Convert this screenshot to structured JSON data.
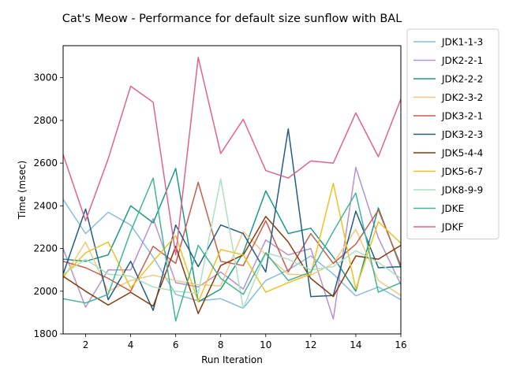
{
  "chart_data": {
    "type": "line",
    "title": "Cat's Meow - Performance for default size sunflow with BAL",
    "xlabel": "Run Iteration",
    "ylabel": "Time (msec)",
    "xlim": [
      1,
      16
    ],
    "ylim": [
      1800,
      3150
    ],
    "xticks": [
      2,
      4,
      6,
      8,
      10,
      12,
      14,
      16
    ],
    "yticks": [
      1800,
      2000,
      2200,
      2400,
      2600,
      2800,
      3000
    ],
    "grid": false,
    "legend_position": "outside-right",
    "x": [
      1,
      2,
      3,
      4,
      5,
      6,
      7,
      8,
      9,
      10,
      11,
      12,
      13,
      14,
      15,
      16
    ],
    "series": [
      {
        "name": "JDK1-1-3",
        "color": "#86bde0",
        "values": [
          2430,
          2270,
          2370,
          2310,
          2160,
          1985,
          1955,
          1965,
          1920,
          2050,
          2100,
          2165,
          2080,
          1978,
          2020,
          1960
        ]
      },
      {
        "name": "JDK2-2-1",
        "color": "#b592d1",
        "values": [
          2200,
          1925,
          2100,
          2100,
          2340,
          2040,
          2020,
          2090,
          2010,
          2240,
          2170,
          2200,
          1870,
          2580,
          2250,
          2030
        ]
      },
      {
        "name": "JDK2-2-2",
        "color": "#1a9a85",
        "values": [
          2150,
          2140,
          2170,
          2400,
          2320,
          2575,
          1950,
          2010,
          2180,
          2470,
          2270,
          2295,
          2160,
          2000,
          2390,
          2110
        ]
      },
      {
        "name": "JDK2-3-2",
        "color": "#f5c77e",
        "values": [
          2060,
          2230,
          2000,
          2050,
          2075,
          2050,
          2030,
          2025,
          2280,
          2170,
          2080,
          2075,
          2130,
          2290,
          2050,
          1980
        ]
      },
      {
        "name": "JDK3-2-1",
        "color": "#c65e4e",
        "values": [
          2140,
          2110,
          2060,
          2000,
          2210,
          2130,
          2510,
          2140,
          2120,
          2330,
          2090,
          2270,
          2130,
          2220,
          2380,
          2120
        ]
      },
      {
        "name": "JDK3-2-3",
        "color": "#235c85",
        "values": [
          2080,
          2385,
          1960,
          2140,
          1910,
          2310,
          2115,
          2310,
          2270,
          2090,
          2760,
          1975,
          1980,
          2375,
          2110,
          2115
        ]
      },
      {
        "name": "JDK5-4-4",
        "color": "#8b3a0c",
        "values": [
          2070,
          2000,
          1935,
          1995,
          1930,
          2210,
          1895,
          2120,
          2170,
          2350,
          2230,
          2060,
          1975,
          2165,
          2150,
          2215
        ]
      },
      {
        "name": "JDK5-6-7",
        "color": "#f0c020",
        "values": [
          2070,
          2180,
          2230,
          2015,
          2140,
          2260,
          1950,
          2195,
          2170,
          1995,
          2040,
          2080,
          2505,
          2010,
          2325,
          2225
        ]
      },
      {
        "name": "JDK8-9-9",
        "color": "#a8e2c0",
        "values": [
          2080,
          2150,
          2080,
          2070,
          2020,
          2000,
          1990,
          2525,
          1920,
          2180,
          2150,
          2100,
          2115,
          2190,
          2135,
          2060
        ]
      },
      {
        "name": "JDKE",
        "color": "#41b59a",
        "values": [
          1965,
          1945,
          1985,
          2280,
          2530,
          1860,
          2215,
          2060,
          1985,
          2180,
          2050,
          2090,
          2280,
          2460,
          1995,
          2040
        ]
      },
      {
        "name": "JDKF",
        "color": "#e2628d",
        "values": [
          2640,
          2330,
          2620,
          2960,
          2885,
          2170,
          3095,
          2645,
          2805,
          2565,
          2530,
          2610,
          2600,
          2835,
          2630,
          2900
        ]
      }
    ]
  }
}
